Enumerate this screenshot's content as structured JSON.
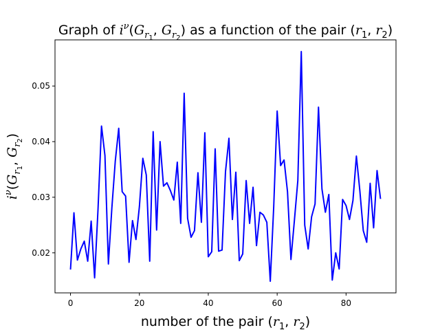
{
  "chart_data": {
    "type": "line",
    "title": {
      "prefix": "Graph of ",
      "math_i": "i",
      "math_sup": "ν",
      "math_open": "(",
      "math_G1": "G",
      "math_sub1": "r",
      "math_sub1n": "1",
      "math_comma": ", ",
      "math_G2": "G",
      "math_sub2": "r",
      "math_sub2n": "2",
      "math_close": ")",
      "middle": " as a function of the pair ",
      "pair_open": "(",
      "pair_r1": "r",
      "pair_r1n": "1",
      "pair_comma": ", ",
      "pair_r2": "r",
      "pair_r2n": "2",
      "pair_close": ")"
    },
    "xlabel": {
      "prefix": "number of the pair ",
      "open": "(",
      "r1": "r",
      "r1n": "1",
      "comma": ", ",
      "r2": "r",
      "r2n": "2",
      "close": ")"
    },
    "ylabel": {
      "i": "i",
      "sup": "ν",
      "open": "(",
      "G1": "G",
      "s1": "r",
      "s1n": "1",
      "comma": ", ",
      "G2": "G",
      "s2": "r",
      "s2n": "2",
      "close": ")"
    },
    "xlim": [
      -4.5,
      94.5
    ],
    "ylim": [
      0.0128,
      0.0583
    ],
    "xticks": [
      0,
      20,
      40,
      60,
      80
    ],
    "xtick_labels": [
      "0",
      "20",
      "40",
      "60",
      "80"
    ],
    "yticks": [
      0.02,
      0.03,
      0.04,
      0.05
    ],
    "ytick_labels": [
      "0.02",
      "0.03",
      "0.04",
      "0.05"
    ],
    "grid": false,
    "series": [
      {
        "color": "#0000ff",
        "x": [
          0,
          1,
          2,
          3,
          4,
          5,
          6,
          7,
          8,
          9,
          10,
          11,
          12,
          13,
          14,
          15,
          16,
          17,
          18,
          19,
          20,
          21,
          22,
          23,
          24,
          25,
          26,
          27,
          28,
          29,
          30,
          31,
          32,
          33,
          34,
          35,
          36,
          37,
          38,
          39,
          40,
          41,
          42,
          43,
          44,
          45,
          46,
          47,
          48,
          49,
          50,
          51,
          52,
          53,
          54,
          55,
          56,
          57,
          58,
          59,
          60,
          61,
          62,
          63,
          64,
          65,
          66,
          67,
          68,
          69,
          70,
          71,
          72,
          73,
          74,
          75,
          76,
          77,
          78,
          79,
          80,
          81,
          82,
          83,
          84,
          85,
          86,
          87,
          88,
          89,
          90
        ],
        "y": [
          0.017,
          0.0272,
          0.0187,
          0.0207,
          0.0221,
          0.0185,
          0.0257,
          0.0155,
          0.028,
          0.0428,
          0.0375,
          0.018,
          0.028,
          0.0365,
          0.0424,
          0.031,
          0.0302,
          0.0183,
          0.0258,
          0.0224,
          0.0283,
          0.037,
          0.034,
          0.0185,
          0.0418,
          0.0241,
          0.04,
          0.032,
          0.0326,
          0.0312,
          0.0295,
          0.0363,
          0.0253,
          0.0487,
          0.0262,
          0.0228,
          0.024,
          0.0344,
          0.0255,
          0.0416,
          0.0193,
          0.0202,
          0.0387,
          0.0203,
          0.0205,
          0.0346,
          0.0406,
          0.026,
          0.0345,
          0.0186,
          0.0198,
          0.033,
          0.0253,
          0.0318,
          0.0213,
          0.0273,
          0.0268,
          0.0255,
          0.0149,
          0.0283,
          0.0455,
          0.0357,
          0.0367,
          0.031,
          0.0188,
          0.0258,
          0.033,
          0.0562,
          0.025,
          0.0207,
          0.0265,
          0.0288,
          0.0462,
          0.0315,
          0.0273,
          0.0305,
          0.0151,
          0.02,
          0.0171,
          0.0296,
          0.0285,
          0.026,
          0.0294,
          0.0374,
          0.0312,
          0.024,
          0.0219,
          0.0325,
          0.0245,
          0.0348,
          0.0297
        ]
      }
    ]
  }
}
